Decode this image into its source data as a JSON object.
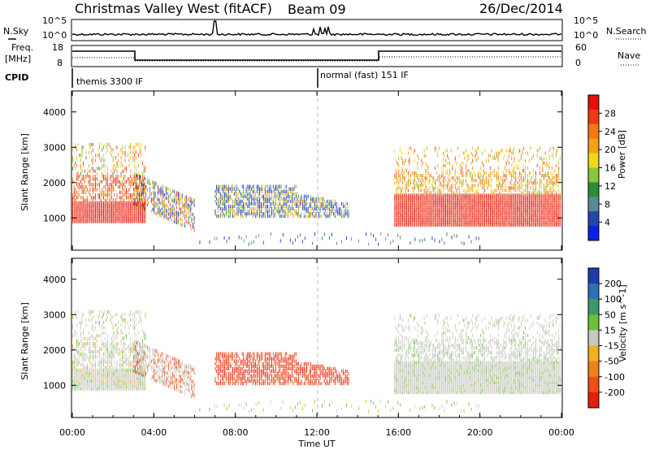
{
  "header": {
    "station": "Christmas Valley West (fitACF)",
    "beam": "Beam 09",
    "date": "26/Dec/2014"
  },
  "panels": {
    "nsky": {
      "label": "N.Sky",
      "left_ticks": [
        "10^5",
        "10^0"
      ],
      "right_ticks": [
        "10^5",
        "10^0"
      ],
      "right_label": "N.Search"
    },
    "freq": {
      "label_line1": "Freq.",
      "label_line2": "[MHz]",
      "left_ticks": [
        "18",
        "8"
      ],
      "right_ticks": [
        "60",
        "0"
      ],
      "right_label": "Nave"
    },
    "cpid": {
      "label": "CPID",
      "modes": [
        "themis 3300 IF",
        "normal (fast) 151 IF"
      ]
    }
  },
  "chart_data": [
    {
      "type": "heatmap",
      "name": "power",
      "ylabel": "Slant Range [km]",
      "yticks": [
        1000,
        2000,
        3000,
        4000
      ],
      "colorbar_label": "Power [dB]",
      "colorbar_ticks": [
        "4",
        "8",
        "12",
        "16",
        "20",
        "24",
        "28"
      ],
      "colors": [
        "#0a22e6",
        "#2547a9",
        "#5a8a98",
        "#2f8a3c",
        "#88c63a",
        "#f0d81c",
        "#f6a218",
        "#f47a10",
        "#ee3c12",
        "#e60e0e"
      ]
    },
    {
      "type": "heatmap",
      "name": "velocity",
      "ylabel": "Slant Range [km]",
      "yticks": [
        1000,
        2000,
        3000,
        4000
      ],
      "colorbar_label": "Velocity [m s^-1]",
      "colorbar_ticks": [
        "200",
        "100",
        "50",
        "15",
        "-15",
        "-50",
        "-100",
        "-200"
      ],
      "colors": [
        "#1e3bb0",
        "#2f6fb4",
        "#3a9a6a",
        "#69c23a",
        "#c8c8c0",
        "#f2b020",
        "#f08018",
        "#ee5016",
        "#e22010"
      ]
    }
  ],
  "time_axis": {
    "label": "Time UT",
    "ticks": [
      "00:00",
      "04:00",
      "08:00",
      "12:00",
      "16:00",
      "20:00",
      "00:00"
    ]
  }
}
